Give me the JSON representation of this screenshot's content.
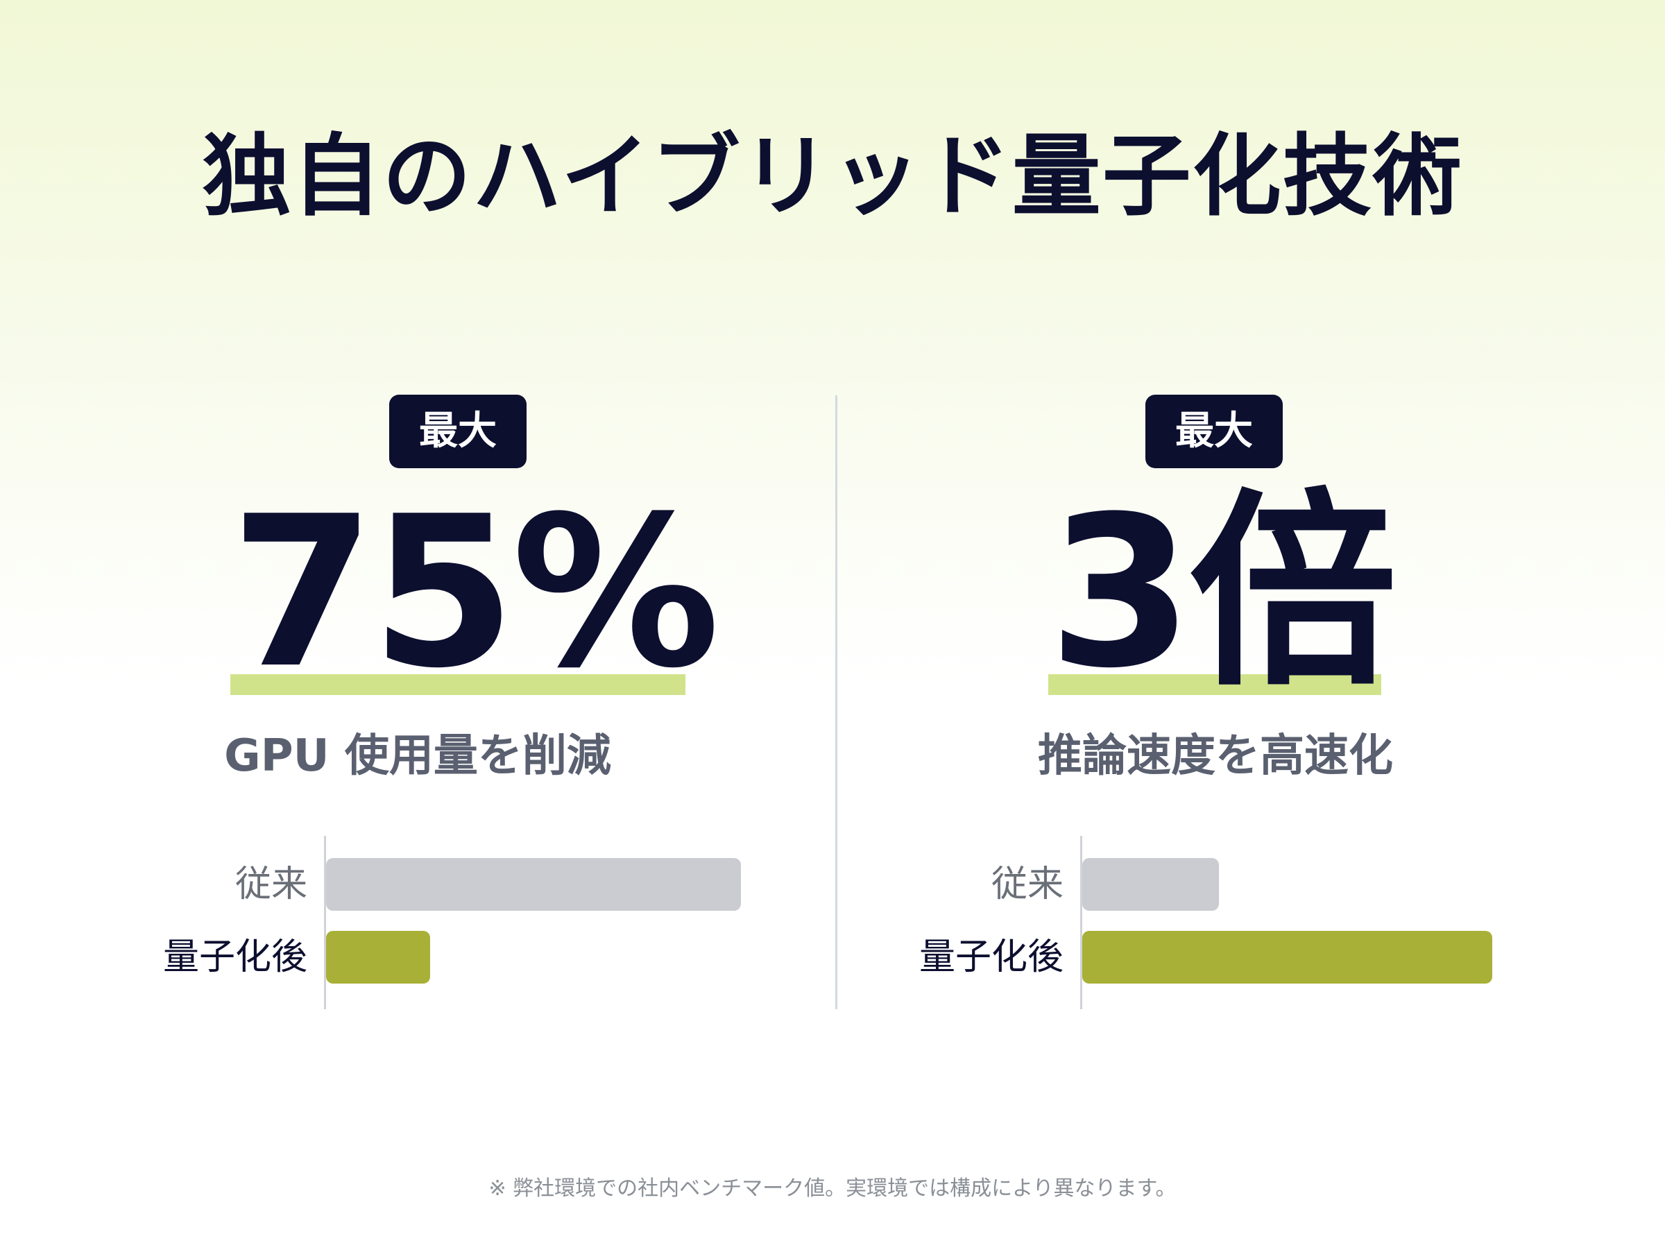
{
  "title": "独自のハイブリッド量子化技術",
  "footnote": "※ 弊社環境での社内ベンチマーク値。実環境では構成により異なります。",
  "colors": {
    "before": "#cbccd2",
    "after": "#a8b037",
    "highlight": "#d0e38b",
    "navy": "#0d0f2f"
  },
  "chart_data": [
    {
      "type": "bar",
      "orientation": "horizontal",
      "badge": "最大",
      "headline": "75%",
      "caption": "GPU 使用量を削減",
      "categories": [
        "従来",
        "量子化後"
      ],
      "values": [
        100,
        25
      ],
      "xlim": [
        0,
        100
      ],
      "grid": false
    },
    {
      "type": "bar",
      "orientation": "horizontal",
      "badge": "最大",
      "headline": "3倍",
      "caption": "推論速度を高速化",
      "categories": [
        "従来",
        "量子化後"
      ],
      "values": [
        1,
        3
      ],
      "xlim": [
        0,
        3
      ],
      "grid": false
    }
  ]
}
